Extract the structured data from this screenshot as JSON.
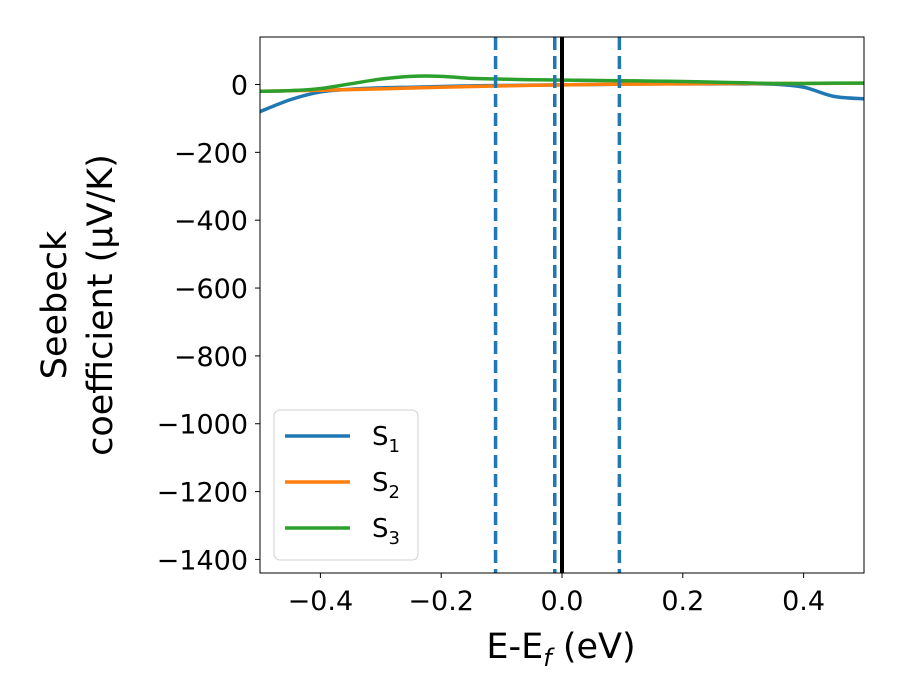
{
  "chart_data": {
    "type": "line",
    "title": "",
    "xlabel": {
      "main": "E-E",
      "sub": "f",
      "suffix": " (eV)"
    },
    "ylabel": {
      "line1": "Seebeck",
      "line2": "coefficient  (μV/K)"
    },
    "xlim": [
      -0.5,
      0.5
    ],
    "ylim": [
      -1440,
      140
    ],
    "xticks": [
      -0.4,
      -0.2,
      0.0,
      0.2,
      0.4
    ],
    "xtick_labels": [
      "−0.4",
      "−0.2",
      "0.0",
      "0.2",
      "0.4"
    ],
    "yticks": [
      0,
      -200,
      -400,
      -600,
      -800,
      -1000,
      -1200,
      -1400
    ],
    "ytick_labels": [
      "0",
      "−200",
      "−400",
      "−600",
      "−800",
      "−1000",
      "−1200",
      "−1400"
    ],
    "grid": false,
    "legend_position": "lower-left",
    "series": [
      {
        "name": "S",
        "name_sub": "1",
        "color": "#1f77b4",
        "x": [
          -0.5,
          -0.45,
          -0.4,
          -0.35,
          -0.3,
          -0.25,
          -0.2,
          -0.15,
          -0.1,
          -0.05,
          0.0,
          0.05,
          0.1,
          0.15,
          0.2,
          0.25,
          0.3,
          0.35,
          0.4,
          0.45,
          0.5
        ],
        "y": [
          -80,
          -45,
          -22,
          -14,
          -10,
          -8,
          -6,
          -4,
          -3,
          -2,
          -1,
          0,
          1,
          2,
          2,
          2,
          2,
          1,
          -8,
          -35,
          -42
        ]
      },
      {
        "name": "S",
        "name_sub": "2",
        "color": "#ff7f0e",
        "x": [
          -0.5,
          -0.4,
          -0.3,
          -0.2,
          -0.1,
          0.0,
          0.1,
          0.2,
          0.3,
          0.4,
          0.5
        ],
        "y": [
          -20,
          -17,
          -13,
          -8,
          -4,
          -1,
          1,
          2,
          3,
          3,
          4
        ]
      },
      {
        "name": "S",
        "name_sub": "3",
        "color": "#2ca02c",
        "x": [
          -0.5,
          -0.45,
          -0.4,
          -0.35,
          -0.3,
          -0.25,
          -0.2,
          -0.15,
          -0.1,
          -0.05,
          0.0,
          0.05,
          0.1,
          0.15,
          0.2,
          0.25,
          0.3,
          0.35,
          0.4,
          0.45,
          0.5
        ],
        "y": [
          -20,
          -18,
          -12,
          2,
          16,
          24,
          24,
          18,
          16,
          14,
          13,
          12,
          11,
          10,
          9,
          7,
          5,
          3,
          3,
          4,
          4
        ]
      }
    ],
    "vertical_lines": [
      {
        "x": -0.11,
        "style": "dashed",
        "color": "#1f77b4"
      },
      {
        "x": -0.012,
        "style": "dashed",
        "color": "#1f77b4"
      },
      {
        "x": 0.0,
        "style": "solid",
        "color": "#000000"
      },
      {
        "x": 0.095,
        "style": "dashed",
        "color": "#1f77b4"
      }
    ]
  }
}
